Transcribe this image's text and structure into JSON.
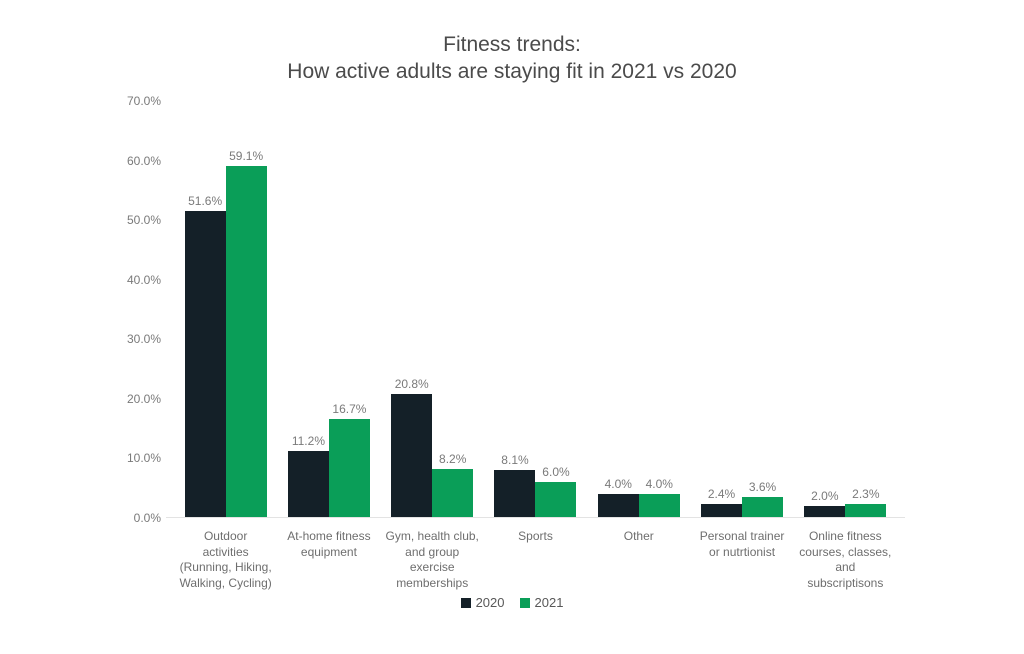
{
  "chart_data": {
    "type": "bar",
    "title": "Fitness trends:\nHow active adults are staying fit in 2021 vs 2020",
    "categories": [
      "Outdoor\nactivities\n(Running, Hiking,\nWalking, Cycling)",
      "At-home fitness\nequipment",
      "Gym, health club,\nand group\nexercise\nmemberships",
      "Sports",
      "Other",
      "Personal trainer\nor nutrtionist",
      "Online fitness\ncourses, classes,\nand\nsubscriptisons"
    ],
    "series": [
      {
        "name": "2020",
        "color": "#142028",
        "values": [
          51.6,
          11.2,
          20.8,
          8.1,
          4.0,
          2.4,
          2.0
        ]
      },
      {
        "name": "2021",
        "color": "#0a9e58",
        "values": [
          59.1,
          16.7,
          8.2,
          6.0,
          4.0,
          3.6,
          2.3
        ]
      }
    ],
    "value_label_format": "{value}%",
    "ylim": [
      0,
      70
    ],
    "y_ticks": [
      {
        "value": 0,
        "label": "0.0%"
      },
      {
        "value": 10,
        "label": "10.0%"
      },
      {
        "value": 20,
        "label": "20.0%"
      },
      {
        "value": 30,
        "label": "30.0%"
      },
      {
        "value": 40,
        "label": "40.0%"
      },
      {
        "value": 50,
        "label": "50.0%"
      },
      {
        "value": 60,
        "label": "60.0%"
      },
      {
        "value": 70,
        "label": "70.0%"
      }
    ],
    "grid": false,
    "legend_position": "bottom",
    "legend": [
      "2020",
      "2021"
    ]
  }
}
